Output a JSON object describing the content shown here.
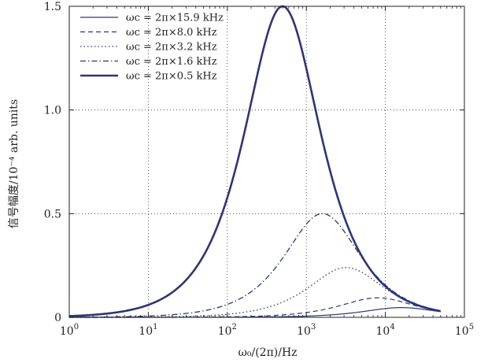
{
  "chart_data": {
    "type": "line",
    "xscale": "log",
    "xlim": [
      1,
      100000
    ],
    "ylim": [
      0,
      1.5
    ],
    "xlabel": "ω₀/(2π)/Hz",
    "ylabel": "信号幅度/10⁻⁴ arb. units",
    "x_ticks": [
      {
        "base": "10",
        "exp": "0"
      },
      {
        "base": "10",
        "exp": "1"
      },
      {
        "base": "10",
        "exp": "2"
      },
      {
        "base": "10",
        "exp": "3"
      },
      {
        "base": "10",
        "exp": "4"
      },
      {
        "base": "10",
        "exp": "5"
      }
    ],
    "y_ticks": [
      "0",
      "0.5",
      "1.0",
      "1.5"
    ],
    "y_tick_values": [
      0,
      0.5,
      1.0,
      1.5
    ],
    "grid": "dotted",
    "legend_position": "top-left",
    "color": "#2e3577",
    "series": [
      {
        "name": "ωc = 2π×15.9 kHz",
        "style": "solid-thin",
        "peak_x": 15900,
        "peak_y": 0.047
      },
      {
        "name": "ωc = 2π×8.0 kHz",
        "style": "dashed",
        "peak_x": 8000,
        "peak_y": 0.094
      },
      {
        "name": "ωc = 2π×3.2 kHz",
        "style": "dotted",
        "peak_x": 3200,
        "peak_y": 0.24
      },
      {
        "name": "ωc = 2π×1.6 kHz",
        "style": "dash-dot",
        "peak_x": 1600,
        "peak_y": 0.5
      },
      {
        "name": "ωc = 2π×0.5 kHz",
        "style": "solid-thick",
        "peak_x": 500,
        "peak_y": 1.5
      }
    ]
  }
}
